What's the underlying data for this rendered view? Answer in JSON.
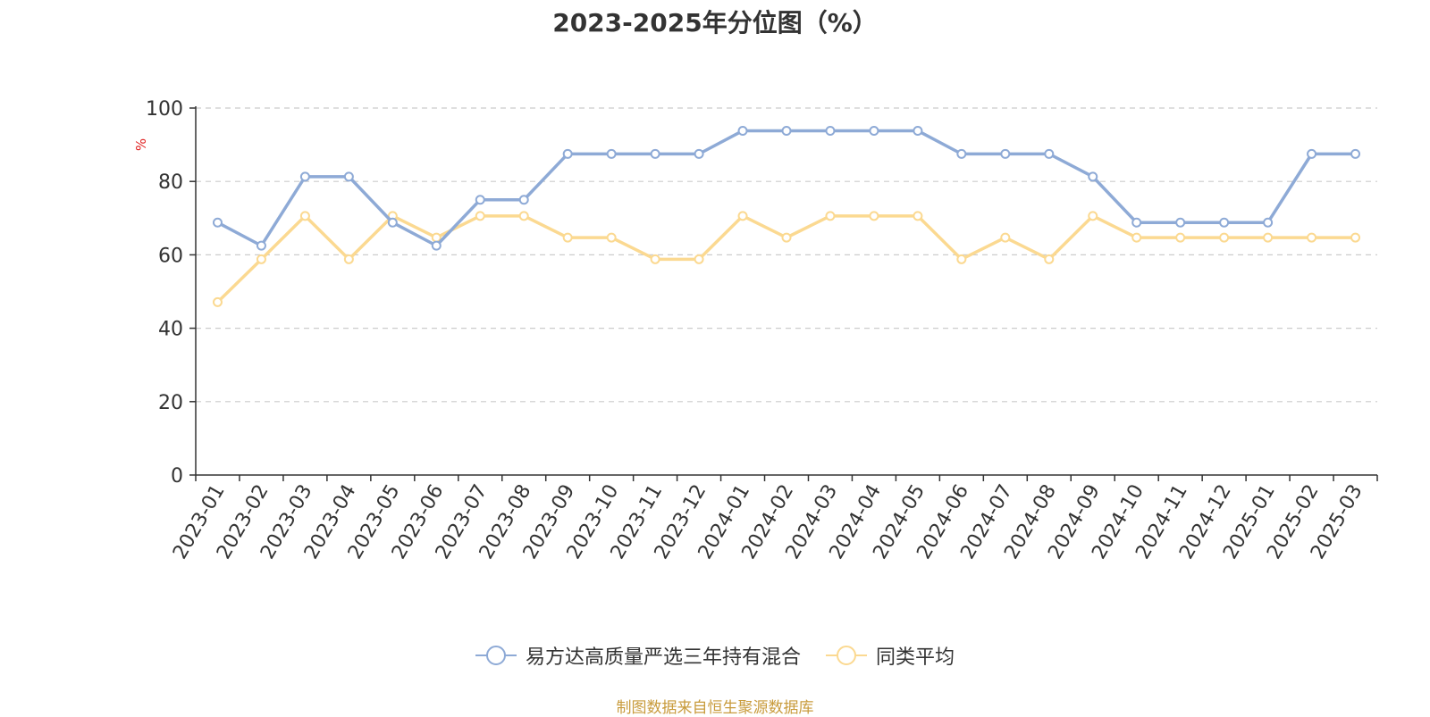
{
  "chart_data": {
    "type": "line",
    "title": "2023-2025年分位图（%）",
    "ylabel": "%",
    "xlabel": "",
    "ylim": [
      0,
      100
    ],
    "yticks": [
      0,
      20,
      40,
      60,
      80,
      100
    ],
    "grid": true,
    "legend_position": "bottom",
    "categories": [
      "2023-01",
      "2023-02",
      "2023-03",
      "2023-04",
      "2023-05",
      "2023-06",
      "2023-07",
      "2023-08",
      "2023-09",
      "2023-10",
      "2023-11",
      "2023-12",
      "2024-01",
      "2024-02",
      "2024-03",
      "2024-04",
      "2024-05",
      "2024-06",
      "2024-07",
      "2024-08",
      "2024-09",
      "2024-10",
      "2024-11",
      "2024-12",
      "2025-01",
      "2025-02",
      "2025-03"
    ],
    "series": [
      {
        "name": "易方达高质量严选三年持有混合",
        "color": "#8eaad6",
        "values": [
          68.8,
          62.5,
          81.3,
          81.3,
          68.8,
          62.5,
          75.0,
          75.0,
          87.5,
          87.5,
          87.5,
          87.5,
          93.8,
          93.8,
          93.8,
          93.8,
          93.8,
          87.5,
          87.5,
          87.5,
          81.3,
          68.8,
          68.8,
          68.8,
          68.8,
          87.5,
          87.5
        ]
      },
      {
        "name": "同类平均",
        "color": "#fbd991",
        "values": [
          47.1,
          58.8,
          70.6,
          58.8,
          70.6,
          64.7,
          70.6,
          70.6,
          64.7,
          64.7,
          58.8,
          58.8,
          70.6,
          64.7,
          70.6,
          70.6,
          70.6,
          58.8,
          64.7,
          58.8,
          70.6,
          64.7,
          64.7,
          64.7,
          64.7,
          64.7,
          64.7
        ]
      }
    ]
  },
  "source_note": "制图数据来自恒生聚源数据库"
}
